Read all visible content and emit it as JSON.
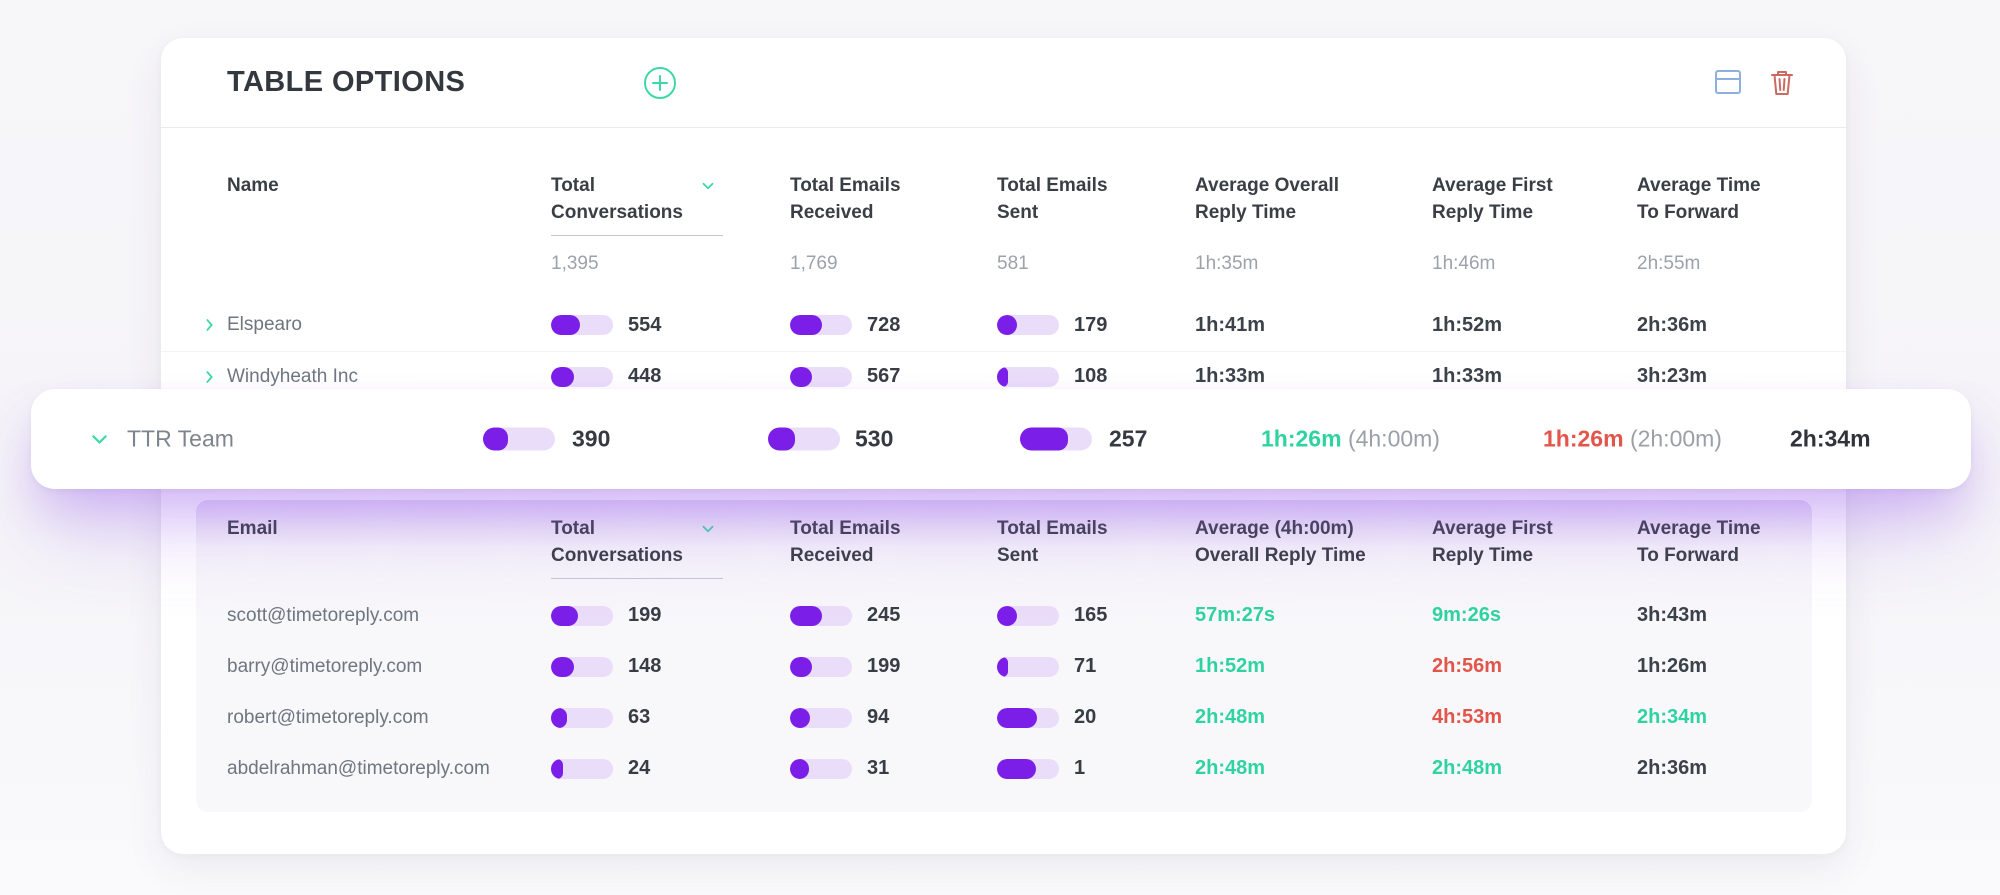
{
  "header": {
    "title": "TABLE OPTIONS",
    "add_icon": "plus-circle-icon",
    "layout_icon": "table-layout-icon",
    "delete_icon": "trash-icon"
  },
  "colors": {
    "accent_purple": "#7B1FE8",
    "bar_track": "#EADDF9",
    "accent_green": "#2FD3A0",
    "accent_red": "#E2554A",
    "icon_blue": "#8FB0DE",
    "icon_red": "#CC6961"
  },
  "table1": {
    "columns": {
      "c0": "Name",
      "c1": "Total Conversations",
      "c2": "Total Emails Received",
      "c3": "Total Emails Sent",
      "c4": "Average Overall Reply Time",
      "c5": "Average First Reply Time",
      "c6": "Average Time To Forward"
    },
    "summary": {
      "conversations": "1,395",
      "received": "1,769",
      "sent": "581",
      "avg_overall": "1h:35m",
      "avg_first": "1h:46m",
      "avg_forward": "2h:55m"
    },
    "rows": [
      {
        "name": "Elspearo",
        "conversations": {
          "value": "554",
          "pct": 46
        },
        "received": {
          "value": "728",
          "pct": 52
        },
        "sent": {
          "value": "179",
          "pct": 33
        },
        "avg_overall": "1h:41m",
        "avg_first": "1h:52m",
        "avg_forward": "2h:36m"
      },
      {
        "name": "Windyheath Inc",
        "conversations": {
          "value": "448",
          "pct": 37
        },
        "received": {
          "value": "567",
          "pct": 36
        },
        "sent": {
          "value": "108",
          "pct": 18
        },
        "avg_overall": "1h:33m",
        "avg_first": "1h:33m",
        "avg_forward": "3h:23m"
      }
    ]
  },
  "team_row": {
    "name": "TTR Team",
    "conversations": {
      "value": "390",
      "pct": 35
    },
    "received": {
      "value": "530",
      "pct": 37
    },
    "sent": {
      "value": "257",
      "pct": 66
    },
    "avg_overall": {
      "time": "1h:26m",
      "target": "(4h:00m)",
      "color": "green"
    },
    "avg_first": {
      "time": "1h:26m",
      "target": "(2h:00m)",
      "color": "red"
    },
    "avg_forward": "2h:34m"
  },
  "table2": {
    "columns": {
      "c0": "Email",
      "c1": "Total Conversations",
      "c2": "Total Emails Received",
      "c3": "Total Emails Sent",
      "c4": "Average (4h:00m) Overall Reply Time",
      "c5": "Average First Reply Time",
      "c6": "Average Time To Forward"
    },
    "rows": [
      {
        "email": "scott@timetoreply.com",
        "conversations": {
          "value": "199",
          "pct": 44
        },
        "received": {
          "value": "245",
          "pct": 52
        },
        "sent": {
          "value": "165",
          "pct": 32
        },
        "avg_overall": {
          "time": "57m:27s",
          "color": "green"
        },
        "avg_first": {
          "time": "9m:26s",
          "color": "green"
        },
        "avg_forward": {
          "time": "3h:43m",
          "color": "dark"
        }
      },
      {
        "email": "barry@timetoreply.com",
        "conversations": {
          "value": "148",
          "pct": 37
        },
        "received": {
          "value": "199",
          "pct": 35
        },
        "sent": {
          "value": "71",
          "pct": 18
        },
        "avg_overall": {
          "time": "1h:52m",
          "color": "green"
        },
        "avg_first": {
          "time": "2h:56m",
          "color": "red"
        },
        "avg_forward": {
          "time": "1h:26m",
          "color": "dark"
        }
      },
      {
        "email": "robert@timetoreply.com",
        "conversations": {
          "value": "63",
          "pct": 25
        },
        "received": {
          "value": "94",
          "pct": 33
        },
        "sent": {
          "value": "20",
          "pct": 65
        },
        "avg_overall": {
          "time": "2h:48m",
          "color": "green"
        },
        "avg_first": {
          "time": "4h:53m",
          "color": "red"
        },
        "avg_forward": {
          "time": "2h:34m",
          "color": "green"
        }
      },
      {
        "email": "abdelrahman@timetoreply.com",
        "conversations": {
          "value": "24",
          "pct": 20
        },
        "received": {
          "value": "31",
          "pct": 30
        },
        "sent": {
          "value": "1",
          "pct": 63
        },
        "avg_overall": {
          "time": "2h:48m",
          "color": "green"
        },
        "avg_first": {
          "time": "2h:48m",
          "color": "green"
        },
        "avg_forward": {
          "time": "2h:36m",
          "color": "dark"
        }
      }
    ]
  }
}
